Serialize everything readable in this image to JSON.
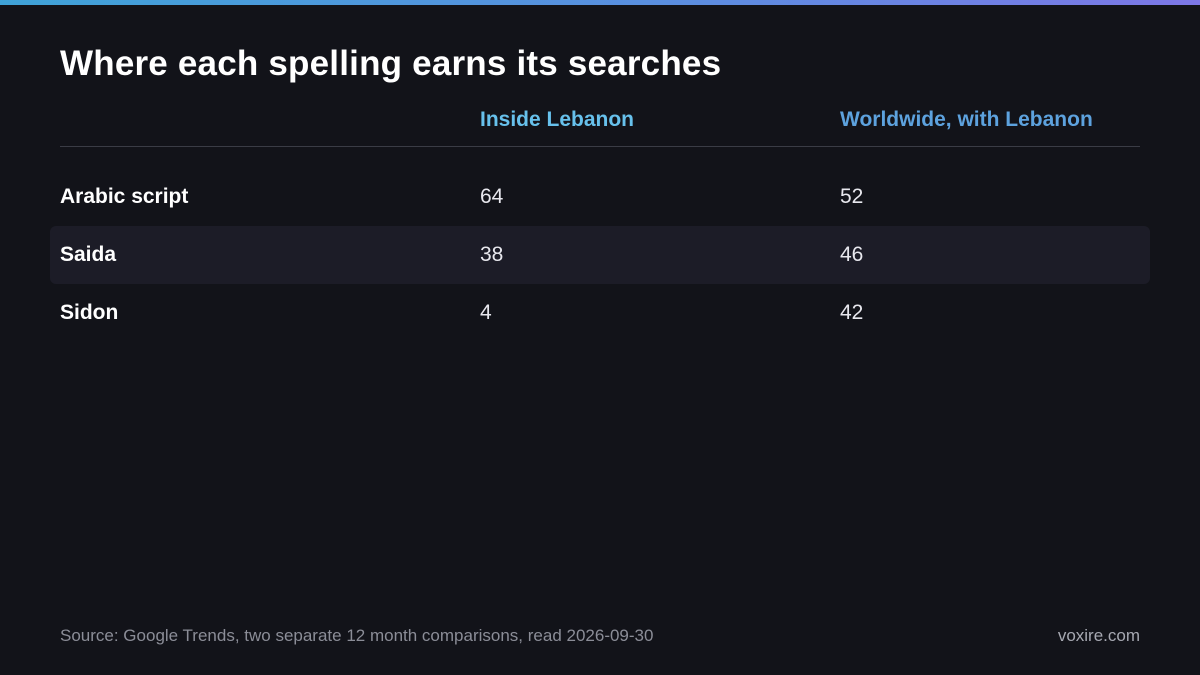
{
  "chart_data": {
    "type": "table",
    "title": "Where each spelling earns its searches",
    "columns": [
      "Inside Lebanon",
      "Worldwide, with Lebanon"
    ],
    "rows": [
      {
        "label": "Arabic script",
        "values": [
          64,
          52
        ]
      },
      {
        "label": "Saida",
        "values": [
          38,
          46
        ]
      },
      {
        "label": "Sidon",
        "values": [
          4,
          42
        ]
      }
    ],
    "colors": {
      "background": "#121319",
      "inside_header": "#67c1ec",
      "worldwide_header": "#5da2de",
      "accent_bar_start": "#3fa3d8",
      "accent_bar_end": "#7d77e6"
    }
  },
  "footer": {
    "source": "Source: Google Trends, two separate 12 month comparisons, read 2026-09-30",
    "brand": "voxire.com"
  }
}
